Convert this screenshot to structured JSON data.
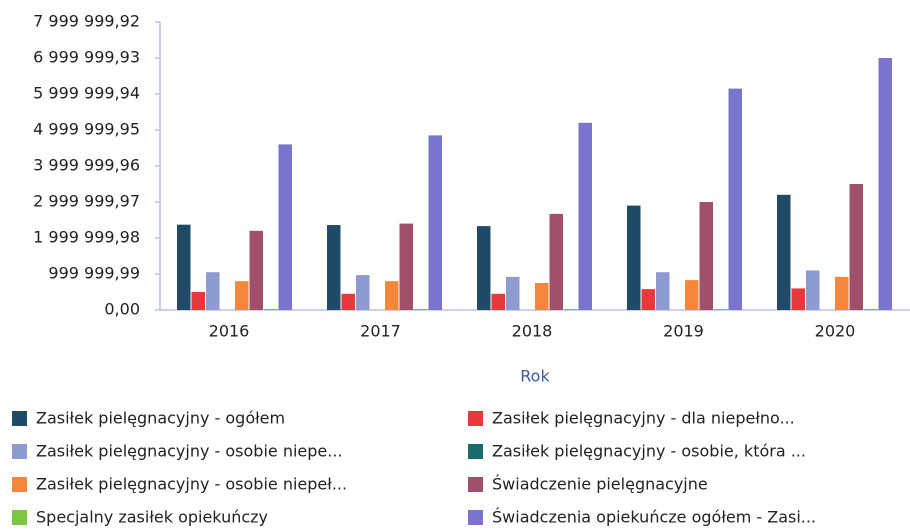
{
  "chart_data": {
    "type": "bar",
    "x_label": "Rok",
    "categories": [
      "2016",
      "2017",
      "2018",
      "2019",
      "2020"
    ],
    "ylim": [
      0,
      7999999.92
    ],
    "yticks": [
      {
        "value": 0,
        "label": "0,00"
      },
      {
        "value": 999999.99,
        "label": "999 999,99"
      },
      {
        "value": 1999999.98,
        "label": "1 999 999,98"
      },
      {
        "value": 2999999.97,
        "label": "2 999 999,97"
      },
      {
        "value": 3999999.96,
        "label": "3 999 999,96"
      },
      {
        "value": 4999999.95,
        "label": "4 999 999,95"
      },
      {
        "value": 5999999.94,
        "label": "5 999 999,94"
      },
      {
        "value": 6999999.93,
        "label": "6 999 999,93"
      },
      {
        "value": 7999999.92,
        "label": "7 999 999,92"
      }
    ],
    "series": [
      {
        "name": "Zasiłek pielęgnacyjny - ogółem",
        "color": "#1f4b66",
        "values": [
          2370000,
          2360000,
          2330000,
          2900000,
          3200000
        ]
      },
      {
        "name": "Zasiłek pielęgnacyjny - dla niepełno...",
        "color": "#e5393c",
        "values": [
          500000,
          450000,
          450000,
          580000,
          600000
        ]
      },
      {
        "name": "Zasiłek pielęgnacyjny - osobie niepe...",
        "color": "#8e9bd0",
        "values": [
          1050000,
          970000,
          920000,
          1050000,
          1100000
        ]
      },
      {
        "name": "Zasiłek pielęgnacyjny - osobie, która ...",
        "color": "#1c6b6a",
        "values": [
          0,
          0,
          0,
          0,
          0
        ]
      },
      {
        "name": "Zasiłek pielęgnacyjny -  osobie niepeł...",
        "color": "#f4873c",
        "values": [
          800000,
          800000,
          750000,
          830000,
          920000
        ]
      },
      {
        "name": "Świadczenie pielęgnacyjne",
        "color": "#a0506a",
        "values": [
          2200000,
          2400000,
          2670000,
          3000000,
          3500000
        ]
      },
      {
        "name": "Specjalny zasiłek opiekuńczy",
        "color": "#7cc644",
        "values": [
          30000,
          30000,
          30000,
          30000,
          30000
        ]
      },
      {
        "name": "Świadczenia opiekuńcze ogółem - Zasi...",
        "color": "#7a74cc",
        "values": [
          4600000,
          4850000,
          5200000,
          6150000,
          7000000
        ]
      }
    ]
  }
}
